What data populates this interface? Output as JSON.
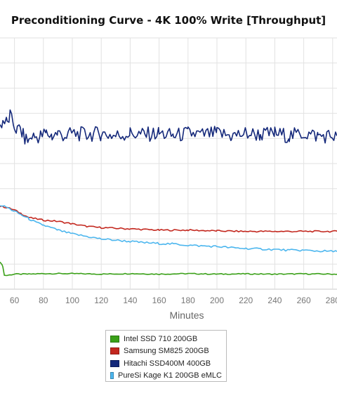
{
  "chart_data": {
    "type": "line",
    "title": "Preconditioning Curve - 4K 100% Write [Throughput]",
    "xlabel": "Minutes",
    "ylabel": "",
    "x_ticks": [
      60,
      80,
      100,
      120,
      140,
      160,
      180,
      200,
      220,
      240,
      260,
      280
    ],
    "xlim": [
      50,
      283
    ],
    "ylim": [
      0,
      10
    ],
    "grid": true,
    "legend_position": "bottom",
    "series": [
      {
        "name": "Intel SSD 710 200GB",
        "color": "#3aa018",
        "points": [
          [
            50,
            1.1
          ],
          [
            52,
            0.9
          ],
          [
            53,
            0.55
          ],
          [
            55,
            0.55
          ],
          [
            60,
            0.6
          ],
          [
            70,
            0.6
          ],
          [
            80,
            0.62
          ],
          [
            100,
            0.62
          ],
          [
            120,
            0.6
          ],
          [
            140,
            0.62
          ],
          [
            160,
            0.6
          ],
          [
            180,
            0.62
          ],
          [
            200,
            0.6
          ],
          [
            220,
            0.61
          ],
          [
            240,
            0.6
          ],
          [
            260,
            0.61
          ],
          [
            283,
            0.6
          ]
        ]
      },
      {
        "name": "Samsung SM825 200GB",
        "color": "#c3271e",
        "points": [
          [
            50,
            3.3
          ],
          [
            55,
            3.25
          ],
          [
            60,
            3.15
          ],
          [
            65,
            3.0
          ],
          [
            70,
            2.85
          ],
          [
            80,
            2.75
          ],
          [
            90,
            2.7
          ],
          [
            100,
            2.6
          ],
          [
            110,
            2.5
          ],
          [
            120,
            2.45
          ],
          [
            140,
            2.4
          ],
          [
            160,
            2.35
          ],
          [
            180,
            2.35
          ],
          [
            200,
            2.32
          ],
          [
            220,
            2.3
          ],
          [
            240,
            2.3
          ],
          [
            260,
            2.3
          ],
          [
            283,
            2.3
          ]
        ]
      },
      {
        "name": "Hitachi SSD400M 400GB",
        "color": "#14287a",
        "points": [
          [
            50,
            6.5
          ],
          [
            52,
            6.7
          ],
          [
            55,
            6.6
          ],
          [
            57,
            6.9
          ],
          [
            58,
            6.7
          ],
          [
            60,
            6.5
          ],
          [
            62,
            6.3
          ],
          [
            64,
            6.4
          ],
          [
            66,
            6.1
          ],
          [
            68,
            5.95
          ],
          [
            70,
            5.9
          ],
          [
            72,
            6.1
          ],
          [
            74,
            6.05
          ],
          [
            78,
            6.1
          ],
          [
            82,
            6.2
          ],
          [
            86,
            6.1
          ],
          [
            90,
            6.2
          ],
          [
            96,
            6.1
          ],
          [
            100,
            6.2
          ],
          [
            110,
            6.15
          ],
          [
            120,
            6.2
          ],
          [
            130,
            6.1
          ],
          [
            140,
            6.2
          ],
          [
            150,
            6.15
          ],
          [
            160,
            6.2
          ],
          [
            170,
            6.1
          ],
          [
            180,
            6.2
          ],
          [
            190,
            6.15
          ],
          [
            200,
            6.2
          ],
          [
            210,
            6.1
          ],
          [
            220,
            6.2
          ],
          [
            230,
            6.15
          ],
          [
            240,
            6.2
          ],
          [
            250,
            6.1
          ],
          [
            260,
            6.2
          ],
          [
            270,
            6.1
          ],
          [
            283,
            6.1
          ]
        ]
      },
      {
        "name": "PureSi Kage K1 200GB eMLC",
        "color": "#4cb6ee",
        "points": [
          [
            50,
            3.35
          ],
          [
            55,
            3.25
          ],
          [
            60,
            3.1
          ],
          [
            65,
            2.95
          ],
          [
            70,
            2.8
          ],
          [
            75,
            2.65
          ],
          [
            80,
            2.55
          ],
          [
            85,
            2.45
          ],
          [
            90,
            2.35
          ],
          [
            100,
            2.2
          ],
          [
            110,
            2.1
          ],
          [
            120,
            2.0
          ],
          [
            130,
            1.95
          ],
          [
            140,
            1.9
          ],
          [
            150,
            1.85
          ],
          [
            160,
            1.82
          ],
          [
            170,
            1.8
          ],
          [
            180,
            1.75
          ],
          [
            190,
            1.72
          ],
          [
            200,
            1.7
          ],
          [
            210,
            1.65
          ],
          [
            220,
            1.62
          ],
          [
            230,
            1.6
          ],
          [
            240,
            1.58
          ],
          [
            250,
            1.55
          ],
          [
            260,
            1.55
          ],
          [
            270,
            1.52
          ],
          [
            283,
            1.5
          ]
        ]
      }
    ]
  }
}
